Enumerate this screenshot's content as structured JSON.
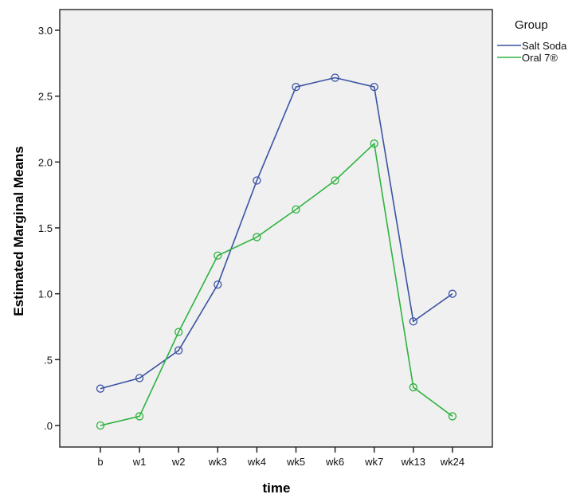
{
  "chart_data": {
    "type": "line",
    "title": "",
    "xlabel": "time",
    "ylabel": "Estimated Marginal Means",
    "categories": [
      "b",
      "w1",
      "w2",
      "wk3",
      "wk4",
      "wk5",
      "wk6",
      "wk7",
      "wk13",
      "wk24"
    ],
    "ylim": [
      0,
      3.0
    ],
    "yticks": [
      0,
      0.5,
      1.0,
      1.5,
      2.0,
      2.5,
      3.0
    ],
    "ytick_labels": [
      ".0",
      ".5",
      "1.0",
      "1.5",
      "2.0",
      "2.5",
      "3.0"
    ],
    "grid": false,
    "legend_position": "right",
    "legend_title": "Group",
    "series": [
      {
        "name": "Salt Soda",
        "color": "#3a54a4",
        "values": [
          0.28,
          0.36,
          0.57,
          1.07,
          1.86,
          2.57,
          2.64,
          2.57,
          0.79,
          1.0
        ]
      },
      {
        "name": "Oral 7®",
        "color": "#2eb340",
        "values": [
          0.0,
          0.07,
          0.71,
          1.29,
          1.43,
          1.64,
          1.86,
          2.14,
          0.29,
          0.07
        ]
      }
    ]
  },
  "style": {
    "plot_background": "#f0f0f0",
    "frame_color": "#333333"
  }
}
